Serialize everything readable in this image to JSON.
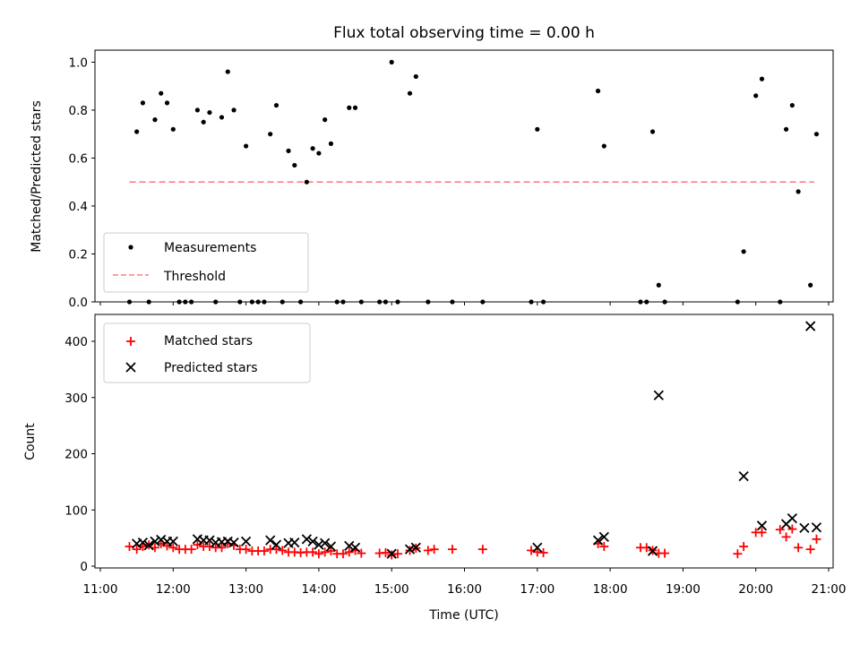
{
  "chart_data": [
    {
      "type": "scatter",
      "title": "Flux total observing time = 0.00 h",
      "xlabel": "",
      "ylabel": "Matched/Predicted stars",
      "xlim": [
        "11:00",
        "21:00"
      ],
      "ylim": [
        0.0,
        1.05
      ],
      "y_ticks": [
        "0.0",
        "0.2",
        "0.4",
        "0.6",
        "0.8",
        "1.0"
      ],
      "legend": {
        "location": "lower-left",
        "entries": [
          "Measurements",
          "Threshold"
        ]
      },
      "series": [
        {
          "name": "Measurements",
          "marker": "dot",
          "color": "#000000",
          "points": [
            [
              "11:24",
              0.0
            ],
            [
              "11:30",
              0.71
            ],
            [
              "11:35",
              0.83
            ],
            [
              "11:40",
              0.0
            ],
            [
              "11:45",
              0.76
            ],
            [
              "11:50",
              0.87
            ],
            [
              "11:55",
              0.83
            ],
            [
              "12:00",
              0.72
            ],
            [
              "12:05",
              0.0
            ],
            [
              "12:10",
              0.0
            ],
            [
              "12:15",
              0.0
            ],
            [
              "12:20",
              0.8
            ],
            [
              "12:25",
              0.75
            ],
            [
              "12:30",
              0.79
            ],
            [
              "12:35",
              0.0
            ],
            [
              "12:40",
              0.77
            ],
            [
              "12:45",
              0.96
            ],
            [
              "12:50",
              0.8
            ],
            [
              "12:55",
              0.0
            ],
            [
              "13:00",
              0.65
            ],
            [
              "13:05",
              0.0
            ],
            [
              "13:10",
              0.0
            ],
            [
              "13:15",
              0.0
            ],
            [
              "13:20",
              0.7
            ],
            [
              "13:25",
              0.82
            ],
            [
              "13:30",
              0.0
            ],
            [
              "13:35",
              0.63
            ],
            [
              "13:40",
              0.57
            ],
            [
              "13:45",
              0.0
            ],
            [
              "13:50",
              0.5
            ],
            [
              "13:55",
              0.64
            ],
            [
              "14:00",
              0.62
            ],
            [
              "14:05",
              0.76
            ],
            [
              "14:10",
              0.66
            ],
            [
              "14:15",
              0.0
            ],
            [
              "14:20",
              0.0
            ],
            [
              "14:25",
              0.81
            ],
            [
              "14:30",
              0.81
            ],
            [
              "14:35",
              0.0
            ],
            [
              "14:50",
              0.0
            ],
            [
              "14:55",
              0.0
            ],
            [
              "15:00",
              1.0
            ],
            [
              "15:05",
              0.0
            ],
            [
              "15:15",
              0.87
            ],
            [
              "15:20",
              0.94
            ],
            [
              "15:30",
              0.0
            ],
            [
              "15:50",
              0.0
            ],
            [
              "16:15",
              0.0
            ],
            [
              "16:55",
              0.0
            ],
            [
              "17:00",
              0.72
            ],
            [
              "17:05",
              0.0
            ],
            [
              "17:50",
              0.88
            ],
            [
              "17:55",
              0.65
            ],
            [
              "18:25",
              0.0
            ],
            [
              "18:30",
              0.0
            ],
            [
              "18:35",
              0.71
            ],
            [
              "18:40",
              0.07
            ],
            [
              "18:45",
              0.0
            ],
            [
              "19:45",
              0.0
            ],
            [
              "19:50",
              0.21
            ],
            [
              "20:00",
              0.86
            ],
            [
              "20:05",
              0.93
            ],
            [
              "20:20",
              0.0
            ],
            [
              "20:25",
              0.72
            ],
            [
              "20:30",
              0.82
            ],
            [
              "20:35",
              0.46
            ],
            [
              "20:45",
              0.07
            ],
            [
              "20:50",
              0.7
            ]
          ]
        },
        {
          "name": "Threshold",
          "type": "line",
          "style": "dashed",
          "color": "#ff7f7f",
          "points": [
            [
              "11:24",
              0.5
            ],
            [
              "20:48",
              0.5
            ]
          ]
        }
      ]
    },
    {
      "type": "scatter",
      "title": "",
      "xlabel": "Time (UTC)",
      "ylabel": "Count",
      "xlim": [
        "11:00",
        "21:00"
      ],
      "ylim": [
        0,
        450
      ],
      "x_ticks": [
        "11:00",
        "12:00",
        "13:00",
        "14:00",
        "15:00",
        "16:00",
        "17:00",
        "18:00",
        "19:00",
        "20:00",
        "21:00"
      ],
      "y_ticks": [
        "0",
        "100",
        "200",
        "300",
        "400"
      ],
      "legend": {
        "location": "top-left",
        "entries": [
          "Matched stars",
          "Predicted stars"
        ]
      },
      "series": [
        {
          "name": "Matched stars",
          "marker": "plus",
          "color": "#ff0000",
          "points": [
            [
              "11:24",
              35
            ],
            [
              "11:30",
              30
            ],
            [
              "11:35",
              35
            ],
            [
              "11:40",
              38
            ],
            [
              "11:45",
              33
            ],
            [
              "11:50",
              40
            ],
            [
              "11:55",
              36
            ],
            [
              "12:00",
              33
            ],
            [
              "12:05",
              30
            ],
            [
              "12:10",
              30
            ],
            [
              "12:15",
              30
            ],
            [
              "12:20",
              38
            ],
            [
              "12:25",
              35
            ],
            [
              "12:30",
              35
            ],
            [
              "12:35",
              33
            ],
            [
              "12:40",
              33
            ],
            [
              "12:45",
              40
            ],
            [
              "12:50",
              37
            ],
            [
              "12:55",
              30
            ],
            [
              "13:00",
              30
            ],
            [
              "13:05",
              27
            ],
            [
              "13:10",
              27
            ],
            [
              "13:15",
              27
            ],
            [
              "13:20",
              30
            ],
            [
              "13:25",
              30
            ],
            [
              "13:30",
              28
            ],
            [
              "13:35",
              25
            ],
            [
              "13:40",
              25
            ],
            [
              "13:45",
              24
            ],
            [
              "13:50",
              25
            ],
            [
              "13:55",
              25
            ],
            [
              "14:00",
              22
            ],
            [
              "14:05",
              25
            ],
            [
              "14:10",
              27
            ],
            [
              "14:15",
              22
            ],
            [
              "14:20",
              22
            ],
            [
              "14:25",
              25
            ],
            [
              "14:30",
              28
            ],
            [
              "14:35",
              23
            ],
            [
              "14:50",
              23
            ],
            [
              "14:55",
              24
            ],
            [
              "15:00",
              20
            ],
            [
              "15:05",
              22
            ],
            [
              "15:15",
              28
            ],
            [
              "15:20",
              32
            ],
            [
              "15:30",
              28
            ],
            [
              "15:35",
              30
            ],
            [
              "15:50",
              30
            ],
            [
              "16:15",
              30
            ],
            [
              "16:55",
              28
            ],
            [
              "17:00",
              25
            ],
            [
              "17:05",
              24
            ],
            [
              "17:50",
              40
            ],
            [
              "17:55",
              35
            ],
            [
              "18:25",
              33
            ],
            [
              "18:30",
              33
            ],
            [
              "18:35",
              28
            ],
            [
              "18:40",
              23
            ],
            [
              "18:45",
              23
            ],
            [
              "19:45",
              22
            ],
            [
              "19:50",
              35
            ],
            [
              "20:00",
              60
            ],
            [
              "20:05",
              60
            ],
            [
              "20:20",
              65
            ],
            [
              "20:25",
              52
            ],
            [
              "20:30",
              66
            ],
            [
              "20:35",
              33
            ],
            [
              "20:45",
              30
            ],
            [
              "20:50",
              48
            ]
          ]
        },
        {
          "name": "Predicted stars",
          "marker": "x",
          "color": "#000000",
          "points": [
            [
              "11:30",
              40
            ],
            [
              "11:35",
              42
            ],
            [
              "11:40",
              37
            ],
            [
              "11:45",
              44
            ],
            [
              "11:50",
              47
            ],
            [
              "11:55",
              44
            ],
            [
              "12:00",
              44
            ],
            [
              "12:20",
              48
            ],
            [
              "12:25",
              46
            ],
            [
              "12:30",
              46
            ],
            [
              "12:35",
              42
            ],
            [
              "12:40",
              43
            ],
            [
              "12:45",
              44
            ],
            [
              "12:50",
              42
            ],
            [
              "13:00",
              44
            ],
            [
              "13:20",
              46
            ],
            [
              "13:25",
              38
            ],
            [
              "13:35",
              41
            ],
            [
              "13:40",
              42
            ],
            [
              "13:50",
              48
            ],
            [
              "13:55",
              44
            ],
            [
              "14:00",
              38
            ],
            [
              "14:05",
              41
            ],
            [
              "14:10",
              35
            ],
            [
              "14:25",
              36
            ],
            [
              "14:30",
              33
            ],
            [
              "15:00",
              22
            ],
            [
              "15:15",
              30
            ],
            [
              "15:20",
              33
            ],
            [
              "17:00",
              33
            ],
            [
              "17:50",
              46
            ],
            [
              "17:55",
              52
            ],
            [
              "18:35",
              27
            ],
            [
              "18:40",
              304
            ],
            [
              "19:50",
              160
            ],
            [
              "20:05",
              72
            ],
            [
              "20:25",
              75
            ],
            [
              "20:30",
              85
            ],
            [
              "20:40",
              68
            ],
            [
              "20:45",
              427
            ],
            [
              "20:50",
              69
            ]
          ]
        }
      ]
    }
  ]
}
